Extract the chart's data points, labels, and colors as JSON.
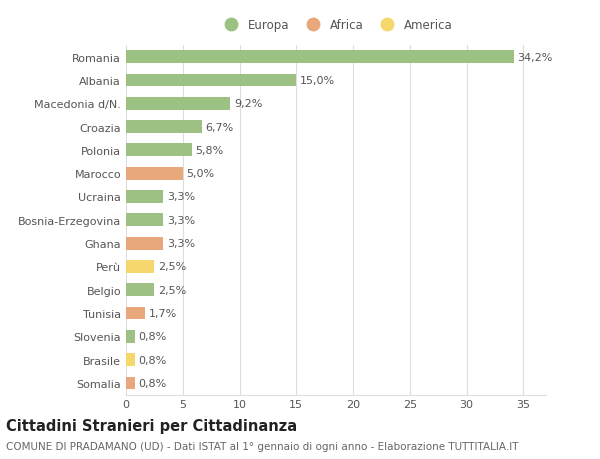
{
  "categories": [
    "Romania",
    "Albania",
    "Macedonia d/N.",
    "Croazia",
    "Polonia",
    "Marocco",
    "Ucraina",
    "Bosnia-Erzegovina",
    "Ghana",
    "Perù",
    "Belgio",
    "Tunisia",
    "Slovenia",
    "Brasile",
    "Somalia"
  ],
  "values": [
    34.2,
    15.0,
    9.2,
    6.7,
    5.8,
    5.0,
    3.3,
    3.3,
    3.3,
    2.5,
    2.5,
    1.7,
    0.8,
    0.8,
    0.8
  ],
  "labels": [
    "34,2%",
    "15,0%",
    "9,2%",
    "6,7%",
    "5,8%",
    "5,0%",
    "3,3%",
    "3,3%",
    "3,3%",
    "2,5%",
    "2,5%",
    "1,7%",
    "0,8%",
    "0,8%",
    "0,8%"
  ],
  "continents": [
    "Europa",
    "Europa",
    "Europa",
    "Europa",
    "Europa",
    "Africa",
    "Europa",
    "Europa",
    "Africa",
    "America",
    "Europa",
    "Africa",
    "Europa",
    "America",
    "Africa"
  ],
  "colors": {
    "Europa": "#9DC183",
    "Africa": "#E8A87C",
    "America": "#F5D76E"
  },
  "legend": [
    {
      "label": "Europa",
      "color": "#9DC183"
    },
    {
      "label": "Africa",
      "color": "#E8A87C"
    },
    {
      "label": "America",
      "color": "#F5D76E"
    }
  ],
  "xlim": [
    0,
    37
  ],
  "xticks": [
    0,
    5,
    10,
    15,
    20,
    25,
    30,
    35
  ],
  "title": "Cittadini Stranieri per Cittadinanza",
  "subtitle": "COMUNE DI PRADAMANO (UD) - Dati ISTAT al 1° gennaio di ogni anno - Elaborazione TUTTITALIA.IT",
  "background_color": "#ffffff",
  "grid_color": "#dddddd",
  "bar_height": 0.55,
  "label_fontsize": 8,
  "tick_fontsize": 8,
  "title_fontsize": 10.5,
  "subtitle_fontsize": 7.5
}
